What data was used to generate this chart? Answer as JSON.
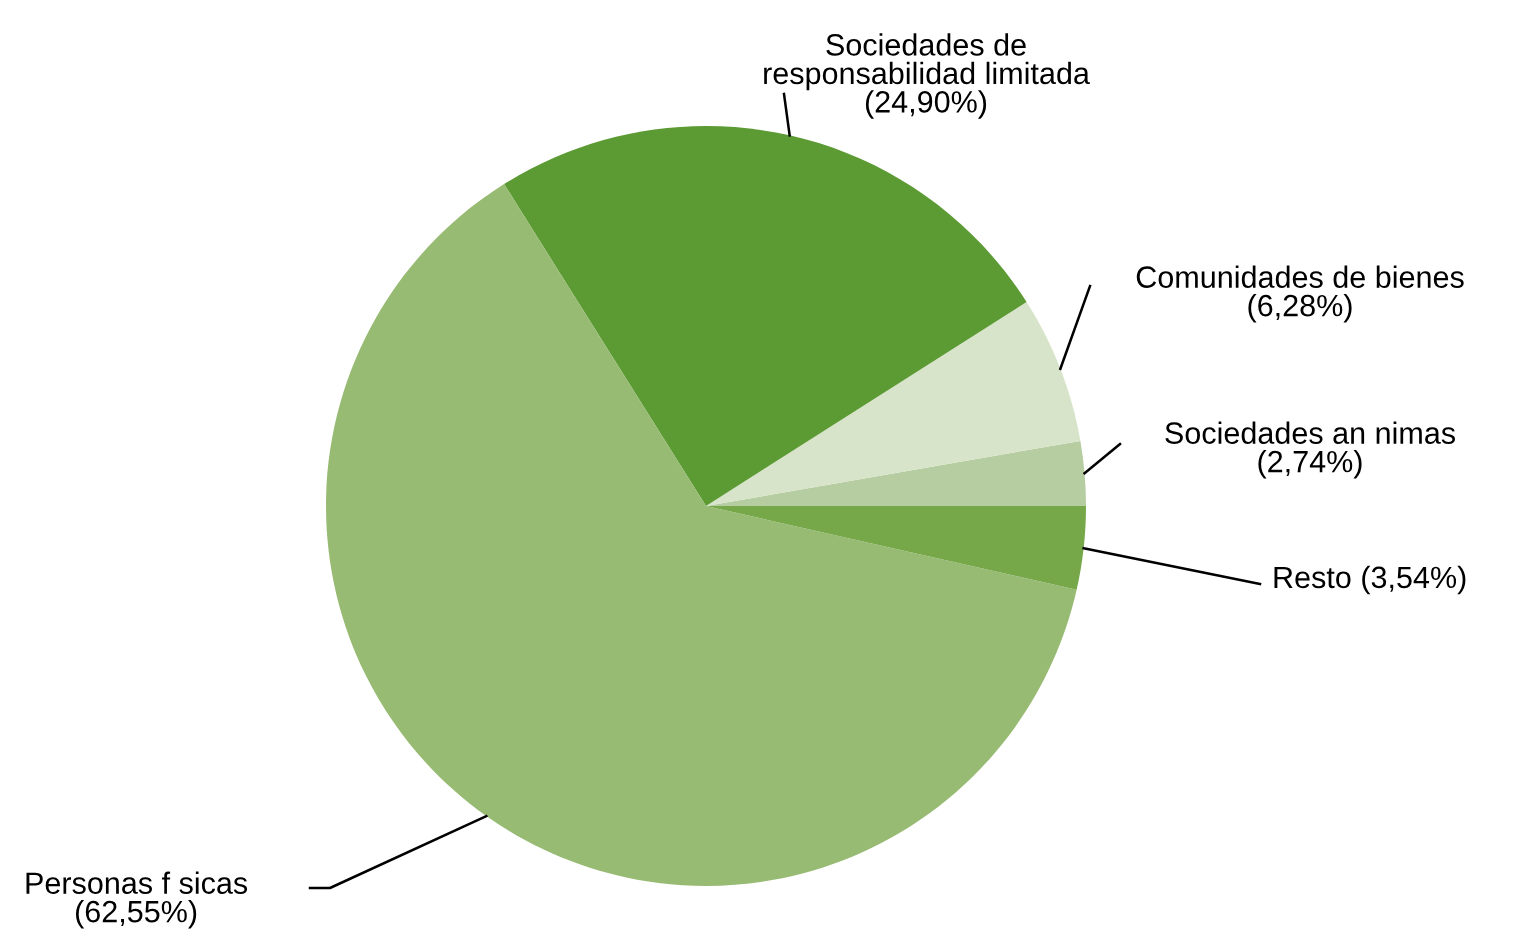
{
  "chart_data": {
    "type": "pie",
    "categories": [
      "Sociedades an nimas",
      "Comunidades de bienes",
      "Sociedades de responsabilidad limitada",
      "Personas f sicas",
      "Resto"
    ],
    "values": [
      2.74,
      6.28,
      24.9,
      62.55,
      3.54
    ],
    "value_labels": [
      "(2,74%)",
      "(6,28%)",
      "(24,90%)",
      "(62,55%)",
      "(3,54%)"
    ],
    "colors": [
      "#b5cda0",
      "#d7e4c9",
      "#5c9a33",
      "#98bb74",
      "#76a84a"
    ],
    "legend": false
  }
}
